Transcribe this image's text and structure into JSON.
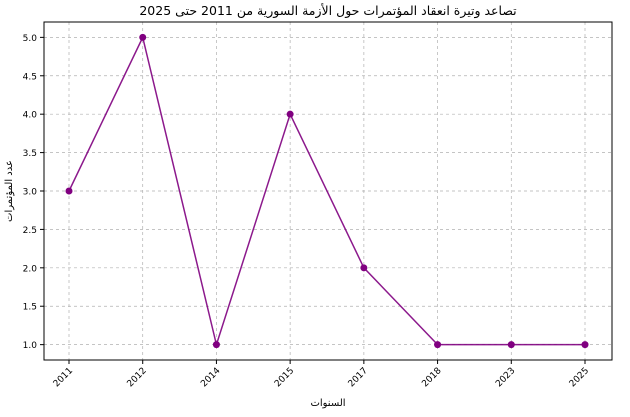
{
  "chart_data": {
    "type": "line",
    "title": "تصاعد وتيرة انعقاد المؤتمرات حول الأزمة السورية من 2011 حتى 2025",
    "xlabel": "السنوات",
    "ylabel": "عدد المؤتمرات",
    "categories": [
      "2011",
      "2012",
      "2014",
      "2015",
      "2017",
      "2018",
      "2023",
      "2025"
    ],
    "values": [
      3,
      5,
      1,
      4,
      2,
      1,
      1,
      1
    ],
    "yticks": [
      "1.0",
      "1.5",
      "2.0",
      "2.5",
      "3.0",
      "3.5",
      "4.0",
      "4.5",
      "5.0"
    ],
    "ylim": [
      0.8,
      5.2
    ],
    "grid": true,
    "marker": "circle",
    "color": "#800080"
  }
}
